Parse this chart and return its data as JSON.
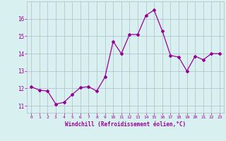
{
  "x": [
    0,
    1,
    2,
    3,
    4,
    5,
    6,
    7,
    8,
    9,
    10,
    11,
    12,
    13,
    14,
    15,
    16,
    17,
    18,
    19,
    20,
    21,
    22,
    23
  ],
  "y": [
    12.1,
    11.9,
    11.85,
    11.1,
    11.2,
    11.65,
    12.05,
    12.1,
    11.85,
    12.65,
    14.7,
    14.0,
    15.1,
    15.1,
    16.2,
    16.5,
    15.3,
    13.9,
    13.8,
    13.0,
    13.85,
    13.65,
    14.0,
    14.0
  ],
  "line_color": "#990099",
  "marker": "D",
  "marker_size": 2,
  "bg_color": "#d8f0f0",
  "grid_color": "#b0b8cc",
  "xlabel": "Windchill (Refroidissement éolien,°C)",
  "xlabel_color": "#990099",
  "tick_color": "#990099",
  "ylim": [
    10.6,
    17.0
  ],
  "xlim": [
    -0.5,
    23.5
  ],
  "yticks": [
    11,
    12,
    13,
    14,
    15,
    16
  ],
  "xticks": [
    0,
    1,
    2,
    3,
    4,
    5,
    6,
    7,
    8,
    9,
    10,
    11,
    12,
    13,
    14,
    15,
    16,
    17,
    18,
    19,
    20,
    21,
    22,
    23
  ]
}
